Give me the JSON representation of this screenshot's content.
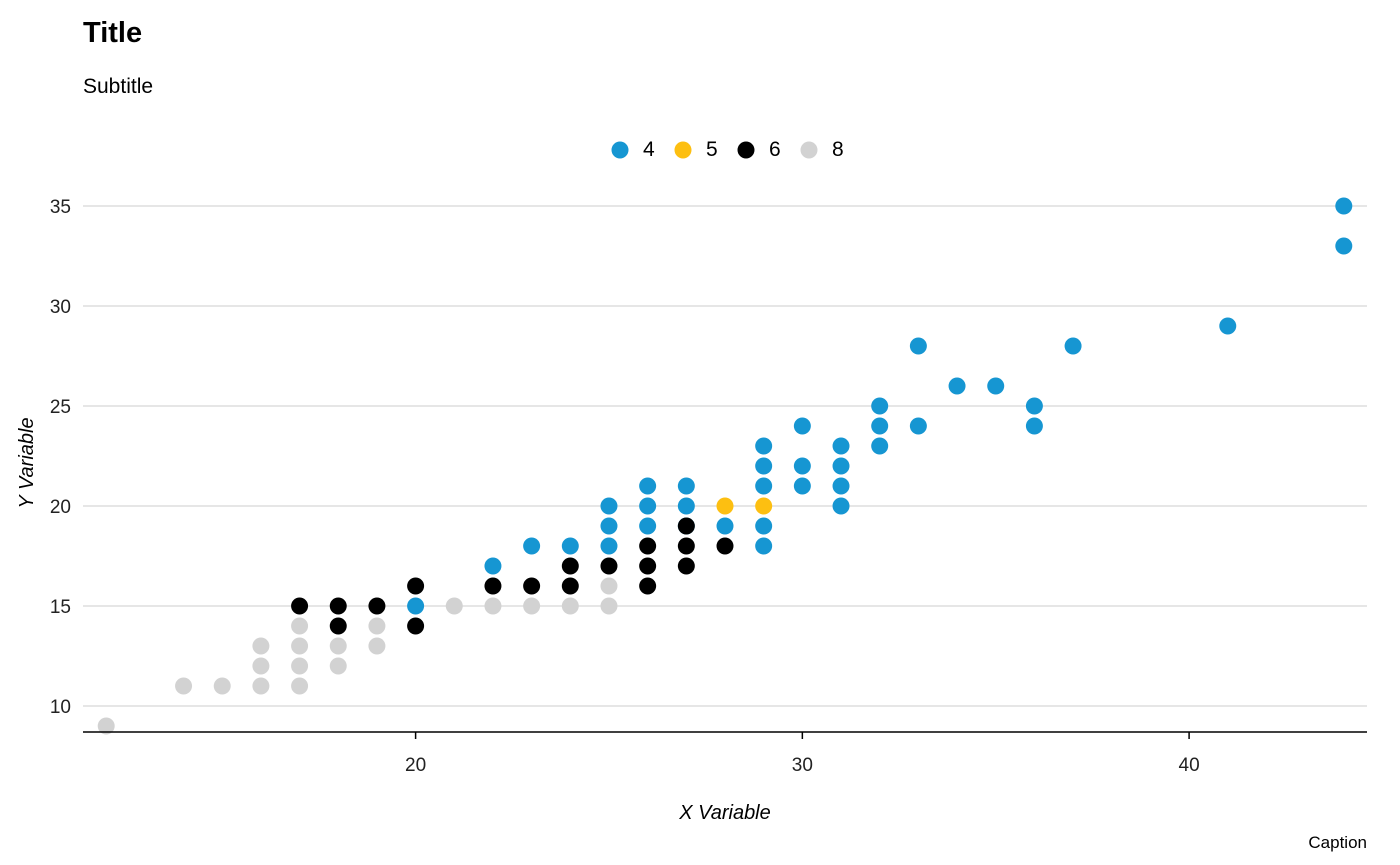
{
  "chart_data": {
    "type": "scatter",
    "title": "Title",
    "subtitle": "Subtitle",
    "caption": "Caption",
    "xlabel": "X Variable",
    "ylabel": "Y Variable",
    "xlim": [
      11.4,
      44.6
    ],
    "ylim": [
      8.7,
      35.3
    ],
    "x_ticks": [
      20,
      30,
      40
    ],
    "y_ticks": [
      10,
      15,
      20,
      25,
      30,
      35
    ],
    "grid": "horizontal",
    "legend_position": "top",
    "series": [
      {
        "name": "4",
        "color": "#1696d2",
        "points": [
          [
            20,
            15
          ],
          [
            22,
            17
          ],
          [
            23,
            18
          ],
          [
            24,
            18
          ],
          [
            25,
            18
          ],
          [
            25,
            19
          ],
          [
            25,
            20
          ],
          [
            26,
            19
          ],
          [
            26,
            20
          ],
          [
            26,
            21
          ],
          [
            27,
            19
          ],
          [
            27,
            20
          ],
          [
            27,
            21
          ],
          [
            28,
            19
          ],
          [
            29,
            18
          ],
          [
            29,
            19
          ],
          [
            29,
            21
          ],
          [
            29,
            22
          ],
          [
            29,
            23
          ],
          [
            30,
            21
          ],
          [
            30,
            22
          ],
          [
            30,
            24
          ],
          [
            31,
            20
          ],
          [
            31,
            21
          ],
          [
            31,
            22
          ],
          [
            31,
            23
          ],
          [
            32,
            23
          ],
          [
            32,
            24
          ],
          [
            32,
            25
          ],
          [
            33,
            24
          ],
          [
            33,
            28
          ],
          [
            34,
            26
          ],
          [
            35,
            26
          ],
          [
            36,
            24
          ],
          [
            36,
            25
          ],
          [
            37,
            28
          ],
          [
            41,
            29
          ],
          [
            44,
            33
          ],
          [
            44,
            35
          ]
        ]
      },
      {
        "name": "5",
        "color": "#fdbf11",
        "points": [
          [
            28,
            20
          ],
          [
            29,
            20
          ]
        ]
      },
      {
        "name": "6",
        "color": "#000000",
        "points": [
          [
            17,
            15
          ],
          [
            18,
            14
          ],
          [
            18,
            15
          ],
          [
            19,
            15
          ],
          [
            20,
            14
          ],
          [
            20,
            16
          ],
          [
            22,
            16
          ],
          [
            23,
            16
          ],
          [
            24,
            16
          ],
          [
            24,
            17
          ],
          [
            25,
            17
          ],
          [
            26,
            16
          ],
          [
            26,
            17
          ],
          [
            26,
            18
          ],
          [
            27,
            17
          ],
          [
            27,
            18
          ],
          [
            27,
            19
          ],
          [
            28,
            18
          ]
        ]
      },
      {
        "name": "8",
        "color": "#d2d2d2",
        "points": [
          [
            12,
            9
          ],
          [
            14,
            11
          ],
          [
            15,
            11
          ],
          [
            16,
            11
          ],
          [
            16,
            12
          ],
          [
            16,
            13
          ],
          [
            17,
            11
          ],
          [
            17,
            12
          ],
          [
            17,
            13
          ],
          [
            17,
            14
          ],
          [
            18,
            12
          ],
          [
            18,
            13
          ],
          [
            19,
            13
          ],
          [
            19,
            14
          ],
          [
            21,
            15
          ],
          [
            22,
            15
          ],
          [
            23,
            15
          ],
          [
            24,
            15
          ],
          [
            25,
            15
          ],
          [
            25,
            16
          ]
        ]
      }
    ]
  }
}
